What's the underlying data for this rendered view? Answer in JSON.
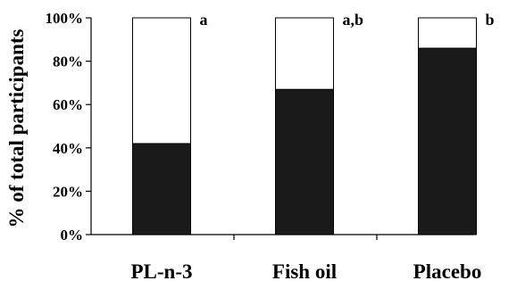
{
  "chart_data": {
    "type": "bar",
    "stacked": true,
    "categories": [
      "PL-n-3",
      "Fish oil",
      "Placebo"
    ],
    "series": [
      {
        "values": [
          42,
          67,
          86
        ],
        "color": "#1a1a1a"
      },
      {
        "values": [
          58,
          33,
          14
        ],
        "color": "#ffffff"
      }
    ],
    "annotations": [
      "a",
      "a,b",
      "b"
    ],
    "ylabel": "% of total participants",
    "ylim": [
      0,
      100
    ],
    "yticks": [
      "0%",
      "20%",
      "40%",
      "60%",
      "80%",
      "100%"
    ],
    "ytick_values": [
      0,
      20,
      40,
      60,
      80,
      100
    ],
    "grid": false,
    "legend": "none"
  }
}
